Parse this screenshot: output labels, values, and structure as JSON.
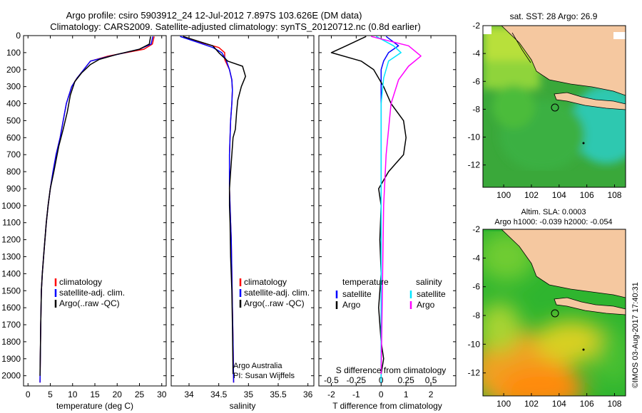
{
  "header": {
    "line1": "Argo profile: csiro 5903912_24 12-Jul-2012 7.897S 103.626E (DM data)",
    "line2": "Climatology: CARS2009. Satellite-adjusted climatology: synTS_20120712.nc (0.8d earlier)"
  },
  "colors": {
    "climatology": "#ff0000",
    "satellite": "#0000ff",
    "argo": "#000000",
    "sal_satellite": "#00e5ff",
    "sal_argo": "#ff00ff",
    "land": "#f5c8a0"
  },
  "chart_data": [
    {
      "type": "line",
      "name": "temperature-profile",
      "xlabel": "temperature (deg C)",
      "ylabel": "",
      "xlim": [
        -1,
        31
      ],
      "ylim": [
        2060,
        0
      ],
      "xticks": [
        0,
        5,
        10,
        15,
        20,
        25,
        30
      ],
      "yticks": [
        0,
        100,
        200,
        300,
        400,
        500,
        600,
        700,
        800,
        900,
        1000,
        1100,
        1200,
        1300,
        1400,
        1500,
        1600,
        1700,
        1800,
        1900,
        2000
      ],
      "legend": [
        "climatology",
        "satellite-adj. clim.",
        "Argo(..raw -QC)"
      ],
      "series": [
        {
          "name": "climatology",
          "color": "#ff0000",
          "x": [
            28.3,
            27.9,
            26,
            18,
            14,
            12.5,
            11,
            9.8,
            8.6,
            7.9,
            7.2,
            6.3,
            5.6,
            5.0,
            4.5,
            4.1,
            3.8,
            3.5,
            3.2,
            3.0,
            2.85,
            2.7
          ],
          "y": [
            5,
            50,
            80,
            120,
            150,
            200,
            250,
            300,
            400,
            500,
            600,
            700,
            800,
            900,
            1000,
            1100,
            1200,
            1300,
            1400,
            1500,
            1700,
            2040
          ]
        },
        {
          "name": "satellite-adj. clim.",
          "color": "#0000ff",
          "x": [
            28.0,
            27.6,
            25,
            18.5,
            14,
            12.5,
            11,
            9.8,
            8.6,
            7.9,
            7.2,
            6.3,
            5.6,
            5.0,
            4.5,
            4.1,
            3.8,
            3.5,
            3.2,
            3.0,
            2.85,
            2.7
          ],
          "y": [
            5,
            50,
            80,
            120,
            150,
            200,
            250,
            300,
            400,
            500,
            600,
            700,
            800,
            900,
            1000,
            1100,
            1200,
            1300,
            1400,
            1500,
            1700,
            2040
          ]
        },
        {
          "name": "Argo(..raw -QC)",
          "color": "#000000",
          "x": [
            27.5,
            27.2,
            25,
            20,
            16,
            14,
            12,
            10.5,
            9.5,
            8.8,
            7.9,
            6.9,
            5.8,
            5.0,
            4.5,
            4.1,
            3.8,
            3.5,
            3.2,
            3.0,
            2.85,
            2.7
          ],
          "y": [
            5,
            50,
            80,
            110,
            140,
            170,
            220,
            270,
            350,
            450,
            550,
            650,
            800,
            900,
            1000,
            1100,
            1200,
            1300,
            1400,
            1500,
            1700,
            2000
          ]
        }
      ]
    },
    {
      "type": "line",
      "name": "salinity-profile",
      "xlabel": "salinity",
      "xlim": [
        33.7,
        36.1
      ],
      "ylim": [
        2060,
        0
      ],
      "xticks": [
        34,
        34.5,
        35,
        35.5,
        36
      ],
      "legend": [
        "climatology",
        "satellite-adj. clim.",
        "Argo(..raw -QC)"
      ],
      "annotations": [
        "Argo Australia",
        "PI: Susan Wijffels"
      ],
      "series": [
        {
          "name": "climatology",
          "color": "#ff0000",
          "x": [
            33.9,
            34.2,
            34.5,
            34.6,
            34.6,
            34.68,
            34.72,
            34.73,
            34.72,
            34.7,
            34.69,
            34.68,
            34.68,
            34.68,
            34.69,
            34.7,
            34.71,
            34.72,
            34.73,
            34.74,
            34.75
          ],
          "y": [
            5,
            40,
            70,
            100,
            140,
            200,
            260,
            320,
            400,
            500,
            600,
            700,
            800,
            900,
            1000,
            1100,
            1200,
            1400,
            1600,
            1800,
            2040
          ]
        },
        {
          "name": "satellite-adj. clim.",
          "color": "#0000ff",
          "x": [
            33.85,
            34.15,
            34.4,
            34.55,
            34.62,
            34.68,
            34.72,
            34.73,
            34.72,
            34.7,
            34.69,
            34.68,
            34.68,
            34.68,
            34.69,
            34.7,
            34.71,
            34.72,
            34.73,
            34.74,
            34.75
          ],
          "y": [
            5,
            40,
            70,
            100,
            140,
            200,
            260,
            320,
            400,
            500,
            600,
            700,
            800,
            900,
            1000,
            1100,
            1200,
            1400,
            1600,
            1800,
            2040
          ]
        },
        {
          "name": "Argo(..raw -QC)",
          "color": "#000000",
          "x": [
            33.9,
            34.4,
            34.5,
            34.65,
            34.9,
            34.95,
            34.88,
            34.82,
            34.8,
            34.78,
            34.74,
            34.72,
            34.7,
            34.68,
            34.68,
            34.69,
            34.7,
            34.72,
            34.73,
            34.74
          ],
          "y": [
            5,
            60,
            100,
            150,
            180,
            240,
            300,
            380,
            450,
            550,
            600,
            700,
            800,
            900,
            1000,
            1100,
            1300,
            1500,
            1700,
            1990
          ]
        }
      ]
    },
    {
      "type": "line",
      "name": "difference-profile",
      "xlabel": "T difference from climatology",
      "top_xlabel": "S difference from climatology",
      "xlim": [
        -2.5,
        3.0
      ],
      "ylim": [
        2060,
        0
      ],
      "xticks": [
        -2,
        -1,
        0,
        1,
        2
      ],
      "top_xtick_labels": [
        "-0.5",
        "-0.25",
        "0",
        "0.25",
        "0.5"
      ],
      "legend_titles": [
        "temperature",
        "salinity"
      ],
      "legend": [
        "satellite",
        "Argo",
        "satellite",
        "Argo"
      ],
      "series": [
        {
          "name": "satellite",
          "color": "#0000ff",
          "x": [
            0.2,
            0.7,
            0.3,
            0.1,
            0.0,
            0.0,
            0.0,
            0.0,
            0.0,
            0.0
          ],
          "y": [
            5,
            60,
            100,
            150,
            200,
            400,
            800,
            1200,
            1600,
            2040
          ]
        },
        {
          "name": "Argo",
          "color": "#000000",
          "x": [
            -0.6,
            -1.4,
            -2.0,
            -0.8,
            -0.3,
            0.1,
            0.4,
            0.9,
            1.0,
            0.9,
            0.6,
            0.3,
            -0.1,
            0.0,
            -0.05,
            0.0,
            -0.1,
            0.0,
            0.1,
            0.0
          ],
          "y": [
            5,
            60,
            100,
            150,
            200,
            300,
            400,
            500,
            600,
            700,
            750,
            800,
            900,
            1000,
            1200,
            1400,
            1600,
            1800,
            1900,
            1990
          ]
        },
        {
          "name": "satellite",
          "color": "#00e5ff",
          "x": [
            -0.2,
            0.5,
            0.8,
            0.3,
            0.1,
            0.0,
            0.0,
            0.0,
            0.0
          ],
          "y": [
            5,
            60,
            100,
            150,
            250,
            400,
            800,
            1400,
            2040
          ]
        },
        {
          "name": "Argo",
          "color": "#ff00ff",
          "x": [
            -0.4,
            1.1,
            1.6,
            1.1,
            0.7,
            0.4,
            0.2,
            0.1,
            0.0
          ],
          "y": [
            5,
            60,
            120,
            180,
            260,
            400,
            700,
            1000,
            1990
          ]
        }
      ]
    },
    {
      "type": "heatmap",
      "name": "sst-map",
      "title": "sat. SST: 28 Argo: 26.9",
      "xlim": [
        98.5,
        108.8
      ],
      "ylim": [
        -13.6,
        -2
      ],
      "xticks": [
        100,
        102,
        104,
        106,
        108
      ],
      "yticks": [
        -2,
        -4,
        -6,
        -8,
        -10,
        -12
      ]
    },
    {
      "type": "heatmap",
      "name": "sla-map",
      "title": "Altim. SLA: 0.0003",
      "subtitle": "Argo h1000: -0.039 h2000: -0.054",
      "xlim": [
        98.5,
        108.8
      ],
      "ylim": [
        -13.6,
        -2
      ],
      "xticks": [
        100,
        102,
        104,
        106,
        108
      ],
      "yticks": [
        -2,
        -4,
        -6,
        -8,
        -10,
        -12
      ]
    }
  ],
  "footer": {
    "stamp": "©IMOS 03-Aug-2017 17:40:31"
  }
}
